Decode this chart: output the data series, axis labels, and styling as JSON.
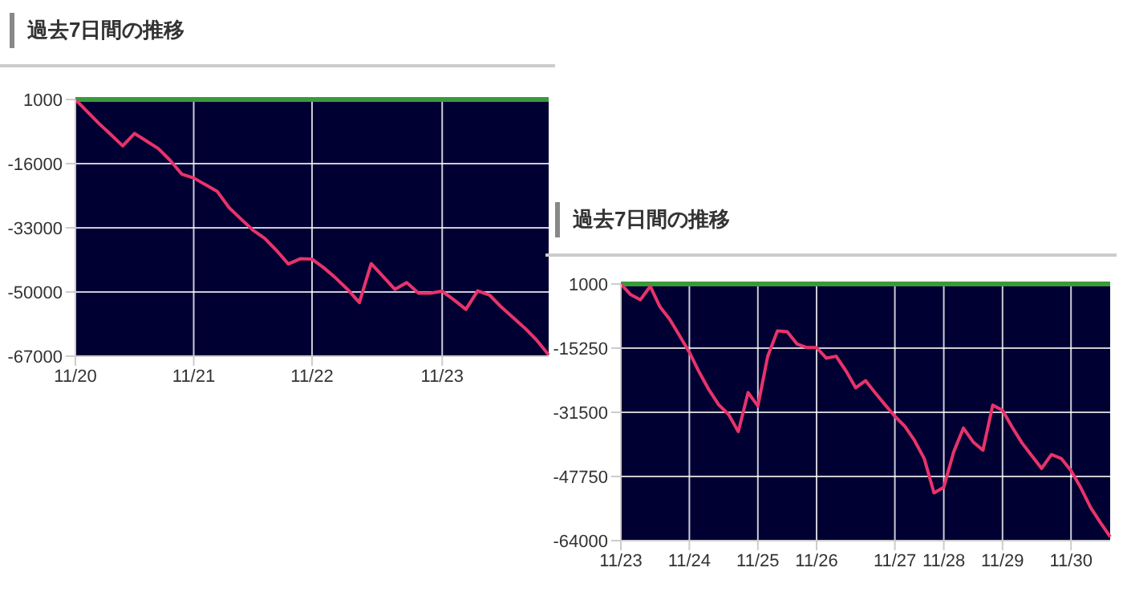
{
  "chart_data": [
    {
      "type": "line",
      "title": "過去7日間の推移",
      "color": "#e8336b",
      "marker": "none",
      "line_style": "solid",
      "grid": true,
      "categories": [
        "11/20",
        null,
        null,
        null,
        null,
        null,
        null,
        null,
        null,
        null,
        "11/21",
        null,
        null,
        null,
        null,
        null,
        null,
        null,
        null,
        null,
        "11/22",
        null,
        null,
        null,
        null,
        null,
        null,
        null,
        null,
        null,
        null,
        "11/23",
        null,
        null,
        null,
        null,
        null,
        null,
        null,
        null,
        null
      ],
      "values": [
        1000,
        -2200,
        -5400,
        -8300,
        -11300,
        -8000,
        -10000,
        -12000,
        -15100,
        -18800,
        -19800,
        -21600,
        -23400,
        -27700,
        -30700,
        -33600,
        -35800,
        -39000,
        -42600,
        -41200,
        -41300,
        -43600,
        -46300,
        -49300,
        -52800,
        -42500,
        -45900,
        -49300,
        -47500,
        -50300,
        -50300,
        -49800,
        -52100,
        -54600,
        -49700,
        -50800,
        -54000,
        -56800,
        -59600,
        -62800,
        -66700
      ],
      "ylim": [
        -67000,
        1000
      ],
      "yticks": [
        1000,
        -16000,
        -33000,
        -50000,
        -67000
      ],
      "ref_lines": [
        {
          "axis": "y",
          "value": 1000,
          "color": "#3a9a3a"
        }
      ]
    },
    {
      "type": "line",
      "title": "過去7日間の推移",
      "color": "#e8336b",
      "marker": "none",
      "line_style": "solid",
      "grid": true,
      "categories": [
        "11/23",
        null,
        null,
        null,
        null,
        null,
        null,
        "11/24",
        null,
        null,
        null,
        null,
        null,
        null,
        "11/25",
        null,
        null,
        null,
        null,
        null,
        "11/26",
        null,
        null,
        null,
        null,
        null,
        null,
        null,
        "11/27",
        null,
        null,
        null,
        null,
        "11/28",
        null,
        null,
        null,
        null,
        null,
        "11/29",
        null,
        null,
        null,
        null,
        null,
        null,
        "11/30",
        null,
        null,
        null,
        null
      ],
      "values": [
        1000,
        -1700,
        -3000,
        400,
        -4800,
        -8000,
        -12100,
        -16300,
        -21300,
        -25800,
        -29600,
        -32000,
        -36400,
        -26500,
        -29900,
        -17400,
        -10900,
        -11100,
        -14200,
        -15100,
        -15100,
        -17800,
        -17300,
        -21000,
        -25300,
        -23500,
        -26600,
        -29600,
        -32500,
        -35000,
        -38600,
        -43200,
        -51900,
        -50500,
        -41600,
        -35500,
        -39000,
        -41100,
        -29700,
        -31000,
        -35300,
        -39300,
        -42500,
        -45700,
        -42200,
        -43200,
        -46300,
        -50600,
        -55600,
        -59400,
        -63000
      ],
      "ylim": [
        -64000,
        1000
      ],
      "yticks": [
        1000,
        -15250,
        -31500,
        -47750,
        -64000
      ],
      "ref_lines": [
        {
          "axis": "y",
          "value": 1000,
          "color": "#3a9a3a"
        }
      ]
    }
  ]
}
